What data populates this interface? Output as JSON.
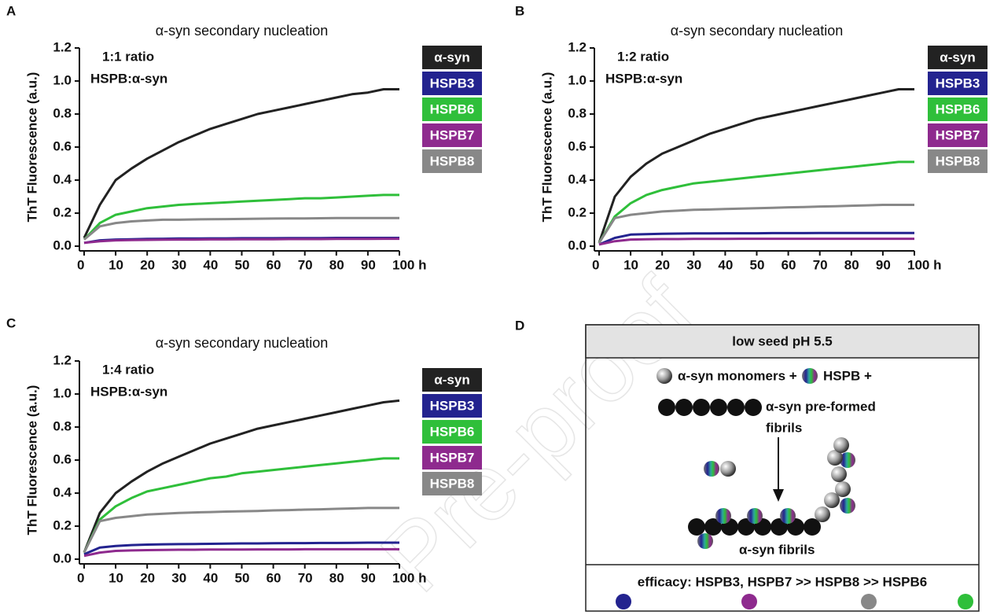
{
  "chart_data": [
    {
      "type": "line",
      "label": "A",
      "title": "α-syn secondary nucleation",
      "annotation": [
        "1:1 ratio",
        "HSPB:α-syn"
      ],
      "ylabel": "ThT Fluorescence (a.u.)",
      "x": [
        0,
        5,
        10,
        15,
        20,
        25,
        30,
        35,
        40,
        45,
        50,
        55,
        60,
        65,
        70,
        75,
        80,
        85,
        90,
        95,
        100
      ],
      "xlim": [
        0,
        100
      ],
      "xticks": [
        0,
        10,
        20,
        30,
        40,
        50,
        60,
        70,
        80,
        90,
        {
          "value": 100,
          "label": "100 h"
        }
      ],
      "ylim": [
        0,
        1.2
      ],
      "yticks": [
        {
          "value": 0,
          "label": "0.0"
        },
        0.2,
        0.4,
        0.6,
        0.8,
        {
          "value": 1,
          "label": "1.0"
        },
        1.2
      ],
      "series": [
        {
          "name": "α-syn",
          "color": "#222222",
          "values": [
            0.05,
            0.25,
            0.4,
            0.47,
            0.53,
            0.58,
            0.63,
            0.67,
            0.71,
            0.74,
            0.77,
            0.8,
            0.82,
            0.84,
            0.86,
            0.88,
            0.9,
            0.92,
            0.93,
            0.95,
            0.95
          ]
        },
        {
          "name": "HSPB3",
          "color": "#23238f",
          "values": [
            0.02,
            0.035,
            0.04,
            0.042,
            0.044,
            0.045,
            0.046,
            0.046,
            0.047,
            0.047,
            0.048,
            0.048,
            0.048,
            0.049,
            0.049,
            0.049,
            0.05,
            0.05,
            0.05,
            0.05,
            0.05
          ]
        },
        {
          "name": "HSPB6",
          "color": "#2fbf3a",
          "values": [
            0.04,
            0.14,
            0.19,
            0.21,
            0.23,
            0.24,
            0.25,
            0.255,
            0.26,
            0.265,
            0.27,
            0.275,
            0.28,
            0.285,
            0.29,
            0.29,
            0.295,
            0.3,
            0.305,
            0.31,
            0.31
          ]
        },
        {
          "name": "HSPB7",
          "color": "#8e2a8e",
          "values": [
            0.02,
            0.03,
            0.035,
            0.037,
            0.038,
            0.039,
            0.04,
            0.04,
            0.041,
            0.041,
            0.042,
            0.042,
            0.042,
            0.043,
            0.043,
            0.043,
            0.044,
            0.044,
            0.044,
            0.045,
            0.045
          ]
        },
        {
          "name": "HSPB8",
          "color": "#888888",
          "values": [
            0.04,
            0.12,
            0.14,
            0.15,
            0.155,
            0.16,
            0.16,
            0.162,
            0.163,
            0.164,
            0.165,
            0.166,
            0.167,
            0.168,
            0.168,
            0.169,
            0.17,
            0.17,
            0.17,
            0.17,
            0.17
          ]
        }
      ]
    },
    {
      "type": "line",
      "label": "B",
      "title": "α-syn secondary nucleation",
      "annotation": [
        "1:2 ratio",
        "HSPB:α-syn"
      ],
      "ylabel": "ThT Fluorescence (a.u.)",
      "x": [
        0,
        5,
        10,
        15,
        20,
        25,
        30,
        35,
        40,
        45,
        50,
        55,
        60,
        65,
        70,
        75,
        80,
        85,
        90,
        95,
        100
      ],
      "xlim": [
        0,
        100
      ],
      "xticks": [
        0,
        10,
        20,
        30,
        40,
        50,
        60,
        70,
        80,
        90,
        {
          "value": 100,
          "label": "100 h"
        }
      ],
      "ylim": [
        0,
        1.2
      ],
      "yticks": [
        {
          "value": 0,
          "label": "0.0"
        },
        0.2,
        0.4,
        0.6,
        0.8,
        {
          "value": 1,
          "label": "1.0"
        },
        1.2
      ],
      "series": [
        {
          "name": "α-syn",
          "color": "#222222",
          "values": [
            0.02,
            0.3,
            0.42,
            0.5,
            0.56,
            0.6,
            0.64,
            0.68,
            0.71,
            0.74,
            0.77,
            0.79,
            0.81,
            0.83,
            0.85,
            0.87,
            0.89,
            0.91,
            0.93,
            0.95,
            0.95
          ]
        },
        {
          "name": "HSPB3",
          "color": "#23238f",
          "values": [
            0.01,
            0.05,
            0.07,
            0.073,
            0.075,
            0.076,
            0.077,
            0.077,
            0.078,
            0.078,
            0.078,
            0.079,
            0.079,
            0.079,
            0.08,
            0.08,
            0.08,
            0.08,
            0.08,
            0.08,
            0.08
          ]
        },
        {
          "name": "HSPB6",
          "color": "#2fbf3a",
          "values": [
            0.02,
            0.18,
            0.26,
            0.31,
            0.34,
            0.36,
            0.38,
            0.39,
            0.4,
            0.41,
            0.42,
            0.43,
            0.44,
            0.45,
            0.46,
            0.47,
            0.48,
            0.49,
            0.5,
            0.51,
            0.51
          ]
        },
        {
          "name": "HSPB7",
          "color": "#8e2a8e",
          "values": [
            0.01,
            0.03,
            0.04,
            0.042,
            0.043,
            0.043,
            0.044,
            0.044,
            0.044,
            0.045,
            0.045,
            0.045,
            0.045,
            0.045,
            0.045,
            0.045,
            0.045,
            0.045,
            0.045,
            0.045,
            0.045
          ]
        },
        {
          "name": "HSPB8",
          "color": "#888888",
          "values": [
            0.02,
            0.17,
            0.19,
            0.2,
            0.21,
            0.215,
            0.22,
            0.222,
            0.225,
            0.227,
            0.23,
            0.232,
            0.235,
            0.237,
            0.24,
            0.242,
            0.245,
            0.247,
            0.25,
            0.25,
            0.25
          ]
        }
      ]
    },
    {
      "type": "line",
      "label": "C",
      "title": "α-syn secondary nucleation",
      "annotation": [
        "1:4 ratio",
        "HSPB:α-syn"
      ],
      "ylabel": "ThT Fluorescence (a.u.)",
      "x": [
        0,
        5,
        10,
        15,
        20,
        25,
        30,
        35,
        40,
        45,
        50,
        55,
        60,
        65,
        70,
        75,
        80,
        85,
        90,
        95,
        100
      ],
      "xlim": [
        0,
        100
      ],
      "xticks": [
        0,
        10,
        20,
        30,
        40,
        50,
        60,
        70,
        80,
        90,
        {
          "value": 100,
          "label": "100 h"
        }
      ],
      "ylim": [
        0,
        1.2
      ],
      "yticks": [
        {
          "value": 0,
          "label": "0.0"
        },
        0.2,
        0.4,
        0.6,
        0.8,
        {
          "value": 1,
          "label": "1.0"
        },
        1.2
      ],
      "series": [
        {
          "name": "α-syn",
          "color": "#222222",
          "values": [
            0.04,
            0.28,
            0.4,
            0.47,
            0.53,
            0.58,
            0.62,
            0.66,
            0.7,
            0.73,
            0.76,
            0.79,
            0.81,
            0.83,
            0.85,
            0.87,
            0.89,
            0.91,
            0.93,
            0.95,
            0.96
          ]
        },
        {
          "name": "HSPB3",
          "color": "#23238f",
          "values": [
            0.03,
            0.07,
            0.08,
            0.085,
            0.088,
            0.09,
            0.091,
            0.092,
            0.093,
            0.094,
            0.095,
            0.095,
            0.096,
            0.097,
            0.097,
            0.098,
            0.098,
            0.099,
            0.1,
            0.1,
            0.1
          ]
        },
        {
          "name": "HSPB6",
          "color": "#2fbf3a",
          "values": [
            0.04,
            0.24,
            0.32,
            0.37,
            0.41,
            0.43,
            0.45,
            0.47,
            0.49,
            0.5,
            0.52,
            0.53,
            0.54,
            0.55,
            0.56,
            0.57,
            0.58,
            0.59,
            0.6,
            0.61,
            0.61
          ]
        },
        {
          "name": "HSPB7",
          "color": "#8e2a8e",
          "values": [
            0.02,
            0.04,
            0.05,
            0.053,
            0.055,
            0.056,
            0.057,
            0.057,
            0.058,
            0.058,
            0.058,
            0.059,
            0.059,
            0.059,
            0.06,
            0.06,
            0.06,
            0.06,
            0.06,
            0.06,
            0.06
          ]
        },
        {
          "name": "HSPB8",
          "color": "#888888",
          "values": [
            0.04,
            0.23,
            0.25,
            0.26,
            0.27,
            0.275,
            0.28,
            0.283,
            0.285,
            0.288,
            0.29,
            0.292,
            0.295,
            0.297,
            0.3,
            0.302,
            0.305,
            0.307,
            0.31,
            0.31,
            0.31
          ]
        }
      ]
    }
  ],
  "diagram": {
    "label": "D",
    "header": "low seed pH 5.5",
    "monomers": "α-syn monomers +",
    "hspb": "HSPB +",
    "preformed": [
      "α-syn pre-formed",
      "fibrils"
    ],
    "fibrils": "α-syn fibrils",
    "efficacy": "efficacy: HSPB3, HSPB7 >> HSPB8 >> HSPB6"
  },
  "watermark": "Pre-proof"
}
